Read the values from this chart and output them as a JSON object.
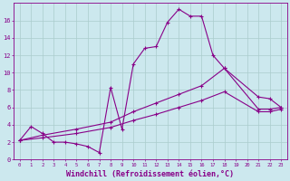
{
  "background_color": "#cce8ee",
  "grid_color": "#aacccc",
  "line_color": "#880088",
  "xlim": [
    -0.5,
    23.5
  ],
  "ylim": [
    0,
    18
  ],
  "xlabel": "Windchill (Refroidissement éolien,°C)",
  "xlabel_fontsize": 6.0,
  "xtick_labels": [
    "0",
    "1",
    "2",
    "3",
    "4",
    "5",
    "6",
    "7",
    "8",
    "9",
    "10",
    "11",
    "12",
    "13",
    "14",
    "15",
    "16",
    "17",
    "18",
    "19",
    "20",
    "21",
    "22",
    "23"
  ],
  "ytick_vals": [
    0,
    2,
    4,
    6,
    8,
    10,
    12,
    14,
    16
  ],
  "curve1_x": [
    0,
    1,
    2,
    3,
    4,
    5,
    6,
    7,
    8,
    9,
    10,
    11,
    12,
    13,
    14,
    15,
    16,
    17,
    18,
    21,
    22,
    23
  ],
  "curve1_y": [
    2.2,
    3.8,
    3.0,
    2.0,
    2.0,
    1.8,
    1.5,
    0.8,
    8.3,
    3.5,
    11.0,
    12.8,
    13.0,
    15.8,
    17.3,
    16.5,
    16.5,
    12.0,
    10.5,
    7.2,
    7.0,
    6.0
  ],
  "curve2_x": [
    0,
    2,
    5,
    8,
    10,
    12,
    14,
    16,
    18,
    21,
    22,
    23
  ],
  "curve2_y": [
    2.2,
    2.8,
    3.5,
    4.3,
    5.5,
    6.5,
    7.5,
    8.5,
    10.5,
    5.8,
    5.8,
    6.0
  ],
  "curve3_x": [
    0,
    2,
    5,
    8,
    10,
    12,
    14,
    16,
    18,
    21,
    22,
    23
  ],
  "curve3_y": [
    2.2,
    2.5,
    3.0,
    3.7,
    4.5,
    5.2,
    6.0,
    6.8,
    7.8,
    5.5,
    5.5,
    5.8
  ]
}
